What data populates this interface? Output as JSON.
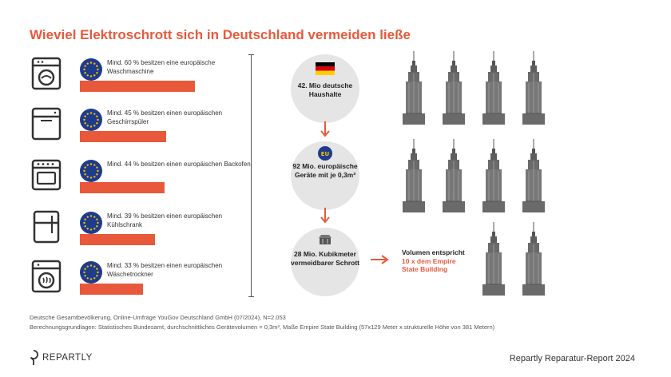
{
  "title": "Wieviel Elektroschrott sich in Deutschland vermeiden ließe",
  "chart_data": {
    "type": "bar",
    "categories": [
      "Mind. 60 % besitzen eine europäische Waschmaschine",
      "Mind. 45 % besitzen einen europäischen Geschirrspüler",
      "Mind. 44 % besitzen einen europäischen Backofen",
      "Mind. 39 % besitzen einen europäischen Kühlschrank",
      "Mind. 33 % besitzen einen europäischen Wäschetrockner"
    ],
    "values": [
      60,
      45,
      44,
      39,
      33
    ],
    "xlim": [
      0,
      100
    ]
  },
  "rows": [
    {
      "icon": "washing-machine-icon",
      "text": "Mind. 60 % besitzen eine europäische Waschmaschine"
    },
    {
      "icon": "dishwasher-icon",
      "text": "Mind. 45 % besitzen einen europäischen Geschirrspüler"
    },
    {
      "icon": "oven-icon",
      "text": "Mind. 44 % besitzen einen europäischen Backofen"
    },
    {
      "icon": "fridge-icon",
      "text": "Mind. 39 % besitzen einen europäischen Kühlschrank"
    },
    {
      "icon": "dryer-icon",
      "text": "Mind. 33 % besitzen einen europäischen Wäschetrockner"
    }
  ],
  "flow": {
    "households": "42. Mio deutsche Haushalte",
    "eu_badge": "EU",
    "devices": "92 Mio. europäische Geräte mit je 0,3m³",
    "volume": "28 Mio. Kubikmeter vermeidbarer Schrott"
  },
  "comparison": {
    "line1": "Volumen entspricht",
    "line2": "10 x dem Empire State Building",
    "count": 10
  },
  "footnotes": [
    "Deutsche Gesamtbevölkerung, Online-Umfrage YouGov Deutschland GmbH (07/2024), N=2.053",
    "Berechnungsgrundlagen: Statistisches Bundesamt, durchschnittliches Gerätevolumen = 0,3m³, Maße Empire State Building (57x129 Meter x strukturelle Höhe von 381 Metern)"
  ],
  "brand": "REPARTLY",
  "report": "Repartly Reparatur-Report 2024",
  "colors": {
    "accent": "#e8593c",
    "eu_blue": "#1f3b8c",
    "eu_gold": "#f2c300",
    "circle_grey": "#e5e5e5"
  }
}
